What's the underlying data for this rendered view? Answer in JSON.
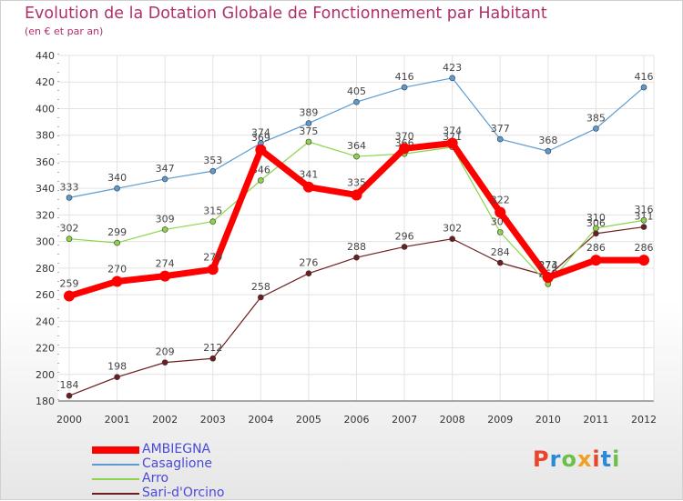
{
  "header": {
    "title": "Evolution de la Dotation Globale de Fonctionnement par Habitant",
    "subtitle": "(en € et par an)"
  },
  "logo": {
    "text": "Proxiti",
    "colors": [
      "#e8452c",
      "#2a8ad8",
      "#6cc04a",
      "#f0a020",
      "#e8452c",
      "#2a8ad8",
      "#6cc04a"
    ]
  },
  "chart_data": {
    "type": "line",
    "title": "Evolution de la Dotation Globale de Fonctionnement par Habitant",
    "subtitle": "(en € et par an)",
    "x": [
      "2000",
      "2001",
      "2002",
      "2003",
      "2004",
      "2005",
      "2006",
      "2007",
      "2008",
      "2009",
      "2010",
      "2011",
      "2012"
    ],
    "ylim": [
      180,
      440
    ],
    "yticks": [
      180,
      200,
      220,
      240,
      260,
      280,
      300,
      320,
      340,
      360,
      380,
      400,
      420,
      440
    ],
    "grid": true,
    "legend_position": "bottom-left",
    "series": [
      {
        "name": "Sari-d'Orcino",
        "color": "#6e1e1e",
        "values": [
          184,
          198,
          209,
          212,
          258,
          276,
          288,
          296,
          302,
          284,
          274,
          306,
          311
        ]
      },
      {
        "name": "Arro",
        "color": "#8ed44a",
        "values": [
          302,
          299,
          309,
          315,
          346,
          375,
          364,
          366,
          371,
          307,
          268,
          310,
          316
        ]
      },
      {
        "name": "Casaglione",
        "color": "#5c9bd1",
        "values": [
          333,
          340,
          347,
          353,
          374,
          389,
          405,
          416,
          423,
          377,
          368,
          385,
          416
        ]
      },
      {
        "name": "AMBIEGNA",
        "color": "#ff0000",
        "values": [
          259,
          270,
          274,
          279,
          369,
          341,
          335,
          370,
          374,
          322,
          273,
          286,
          286
        ]
      }
    ],
    "legend_order": [
      "AMBIEGNA",
      "Casaglione",
      "Arro",
      "Sari-d'Orcino"
    ]
  }
}
